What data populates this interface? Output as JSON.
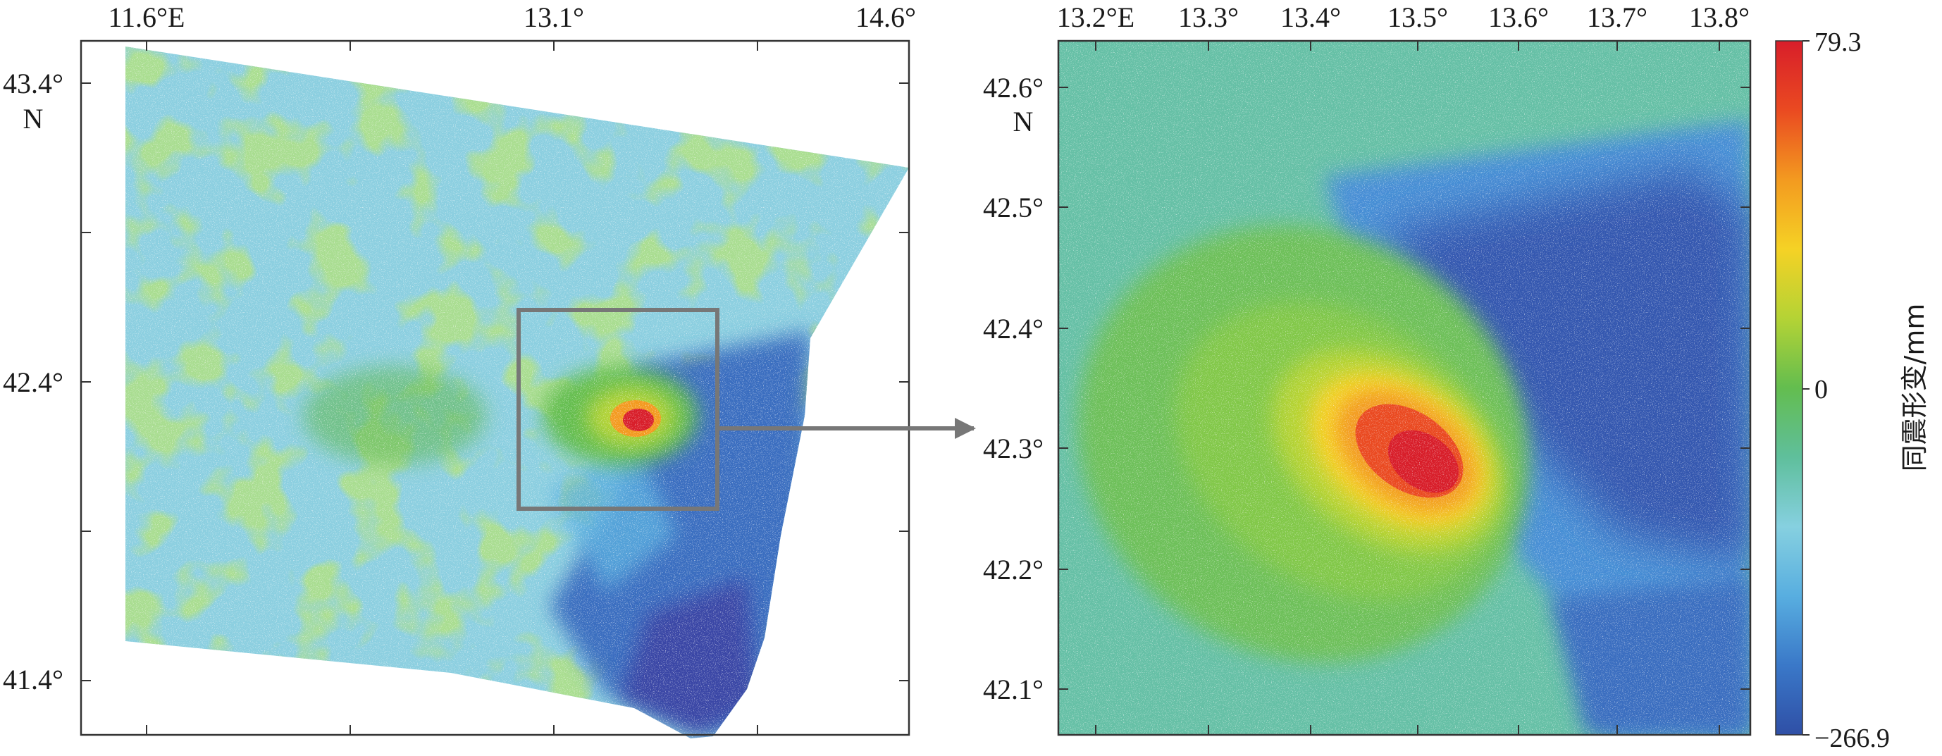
{
  "left_map": {
    "lon_ticks": [
      "11.6°E",
      "13.1°",
      "14.6°"
    ],
    "lat_ticks": [
      "43.4°",
      "42.4°",
      "41.4°"
    ],
    "lat_unit": "N"
  },
  "right_map": {
    "lon_ticks": [
      "13.2°E",
      "13.3°",
      "13.4°",
      "13.5°",
      "13.6°",
      "13.7°",
      "13.8°"
    ],
    "lat_ticks": [
      "42.6°",
      "42.5°",
      "42.4°",
      "42.3°",
      "42.2°",
      "42.1°"
    ],
    "lat_unit": "N"
  },
  "colorbar": {
    "title": "同震形变/mm",
    "max_label": "79.3",
    "zero_label": "0",
    "min_label": "−266.9",
    "max_value": 79.3,
    "min_value": -266.9,
    "colors": [
      "#2f4fa6",
      "#3a78c8",
      "#58aee0",
      "#86d0e0",
      "#5fbf9c",
      "#63bd4f",
      "#b4d335",
      "#f5d225",
      "#f39a20",
      "#ea4a21",
      "#d81e2a"
    ]
  },
  "colors": {
    "frame": "#333333",
    "inset_box": "#777777",
    "arrow": "#777777"
  }
}
